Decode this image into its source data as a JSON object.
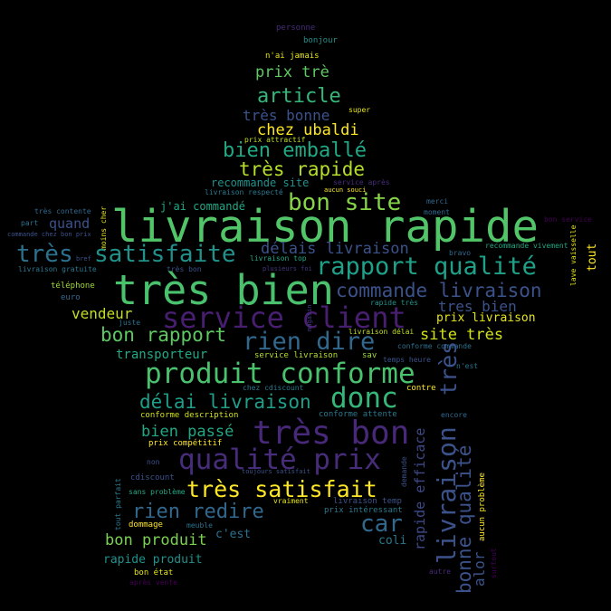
{
  "words": [
    {
      "text": "personne",
      "color": "#472c7a"
    },
    {
      "text": "bonjour",
      "color": "#21918c"
    },
    {
      "text": "n'ai jamais",
      "color": "#e5e419"
    },
    {
      "text": "prix trè",
      "color": "#5ec962"
    },
    {
      "text": "article",
      "color": "#35b779"
    },
    {
      "text": "très bonne",
      "color": "#3b528b"
    },
    {
      "text": "super",
      "color": "#e5e419"
    },
    {
      "text": "chez ubaldi",
      "color": "#fde725"
    },
    {
      "text": "moment",
      "color": "#31688e"
    },
    {
      "text": "prix attractif",
      "color": "#c2df23"
    },
    {
      "text": "bien emballé",
      "color": "#22a884"
    },
    {
      "text": "très rapide",
      "color": "#b5de2b"
    },
    {
      "text": "recommande site",
      "color": "#21918c"
    },
    {
      "text": "service après",
      "color": "#472c7a"
    },
    {
      "text": "bon site",
      "color": "#86d549"
    },
    {
      "text": "aucun souci",
      "color": "#fde725"
    },
    {
      "text": "livraison respecté",
      "color": "#2a788e"
    },
    {
      "text": "merci",
      "color": "#31688e"
    },
    {
      "text": "très contente",
      "color": "#31688e"
    },
    {
      "text": "j'ai commandé",
      "color": "#22a884"
    },
    {
      "text": "livraison rapide",
      "color": "#52c569"
    },
    {
      "text": "bon service",
      "color": "#440154"
    },
    {
      "text": "part",
      "color": "#2c728e"
    },
    {
      "text": "quand",
      "color": "#3b528b"
    },
    {
      "text": "moins cher",
      "color": "#e5e419"
    },
    {
      "text": "commande chez bon prix",
      "color": "#3b528b"
    },
    {
      "text": "très",
      "color": "#2c728e"
    },
    {
      "text": "satisfaite",
      "color": "#21918c"
    },
    {
      "text": "délais livraison",
      "color": "#3b528b"
    },
    {
      "text": "recommande vivement",
      "color": "#22a884"
    },
    {
      "text": "bravo",
      "color": "#31688e"
    },
    {
      "text": "livraison top",
      "color": "#22a884"
    },
    {
      "text": "rapport qualité",
      "color": "#1fa088"
    },
    {
      "text": "tout",
      "color": "#fde725"
    },
    {
      "text": "lave vaisselle",
      "color": "#e5e419"
    },
    {
      "text": "livraison gratuite",
      "color": "#2a788e"
    },
    {
      "text": "très bon",
      "color": "#3b528b"
    },
    {
      "text": "plusieurs foi",
      "color": "#443983"
    },
    {
      "text": "très bien",
      "color": "#4ac16d"
    },
    {
      "text": "téléphone",
      "color": "#a0da39"
    },
    {
      "text": "commande livraison",
      "color": "#3b528b"
    },
    {
      "text": "euro",
      "color": "#31688e"
    },
    {
      "text": "bref",
      "color": "#3b528b"
    },
    {
      "text": "rapide très",
      "color": "#21918c"
    },
    {
      "text": "tres bien",
      "color": "#3b528b"
    },
    {
      "text": "service client",
      "color": "#481f70"
    },
    {
      "text": "vendeur",
      "color": "#c2df23"
    },
    {
      "text": "juste",
      "color": "#2c728e"
    },
    {
      "text": "magasin",
      "color": "#443983"
    },
    {
      "text": "prix livraison",
      "color": "#e5e419"
    },
    {
      "text": "bon rapport",
      "color": "#5ec962"
    },
    {
      "text": "livraison délai",
      "color": "#c2df23"
    },
    {
      "text": "rien dire",
      "color": "#31688e"
    },
    {
      "text": "site très",
      "color": "#d2e21b"
    },
    {
      "text": "conforme commande",
      "color": "#2c728e"
    },
    {
      "text": "transporteur",
      "color": "#22a884"
    },
    {
      "text": "service livraison",
      "color": "#b5de2b"
    },
    {
      "text": "sav",
      "color": "#a0da39"
    },
    {
      "text": "temps heure",
      "color": "#3b528b"
    },
    {
      "text": "n'est",
      "color": "#2c728e"
    },
    {
      "text": "produit conforme",
      "color": "#4ac16d"
    },
    {
      "text": "chez cdiscount",
      "color": "#2a788e"
    },
    {
      "text": "contre",
      "color": "#fde725"
    },
    {
      "text": "donc",
      "color": "#35b779"
    },
    {
      "text": "très",
      "color": "#3b528b"
    },
    {
      "text": "délai livraison",
      "color": "#1f9e89"
    },
    {
      "text": "conforme description",
      "color": "#d2e21b"
    },
    {
      "text": "conforme attente",
      "color": "#2a788e"
    },
    {
      "text": "encore",
      "color": "#31688e"
    },
    {
      "text": "très bon",
      "color": "#482878"
    },
    {
      "text": "bien passé",
      "color": "#22a884"
    },
    {
      "text": "rapide efficace",
      "color": "#3e4989"
    },
    {
      "text": "livraison",
      "color": "#3b528b"
    },
    {
      "text": "bonne qualité",
      "color": "#3b528b"
    },
    {
      "text": "prix compétitif",
      "color": "#fde725"
    },
    {
      "text": "qualité prix",
      "color": "#472c7a"
    },
    {
      "text": "toujours satisfait",
      "color": "#3b528b"
    },
    {
      "text": "demande",
      "color": "#3b528b"
    },
    {
      "text": "aucun problème",
      "color": "#fde725"
    },
    {
      "text": "non",
      "color": "#3b528b"
    },
    {
      "text": "cdiscount",
      "color": "#3b528b"
    },
    {
      "text": "très satisfait",
      "color": "#fde725"
    },
    {
      "text": "tout parfait",
      "color": "#2a788e"
    },
    {
      "text": "sans problème",
      "color": "#22a884"
    },
    {
      "text": "vraiment",
      "color": "#e5e419"
    },
    {
      "text": "livraison temp",
      "color": "#3b528b"
    },
    {
      "text": "rien redire",
      "color": "#31688e"
    },
    {
      "text": "prix intéressant",
      "color": "#2a788e"
    },
    {
      "text": "car",
      "color": "#31688e"
    },
    {
      "text": "dommage",
      "color": "#fde725"
    },
    {
      "text": "meuble",
      "color": "#2c728e"
    },
    {
      "text": "c'est",
      "color": "#2c728e"
    },
    {
      "text": "alor",
      "color": "#3b528b"
    },
    {
      "text": "surtout",
      "color": "#440154"
    },
    {
      "text": "bon produit",
      "color": "#7ad151"
    },
    {
      "text": "coli",
      "color": "#2a788e"
    },
    {
      "text": "rapide produit",
      "color": "#21918c"
    },
    {
      "text": "autre",
      "color": "#472c7a"
    },
    {
      "text": "bon état",
      "color": "#e5e419"
    },
    {
      "text": "après vente",
      "color": "#440154"
    }
  ]
}
